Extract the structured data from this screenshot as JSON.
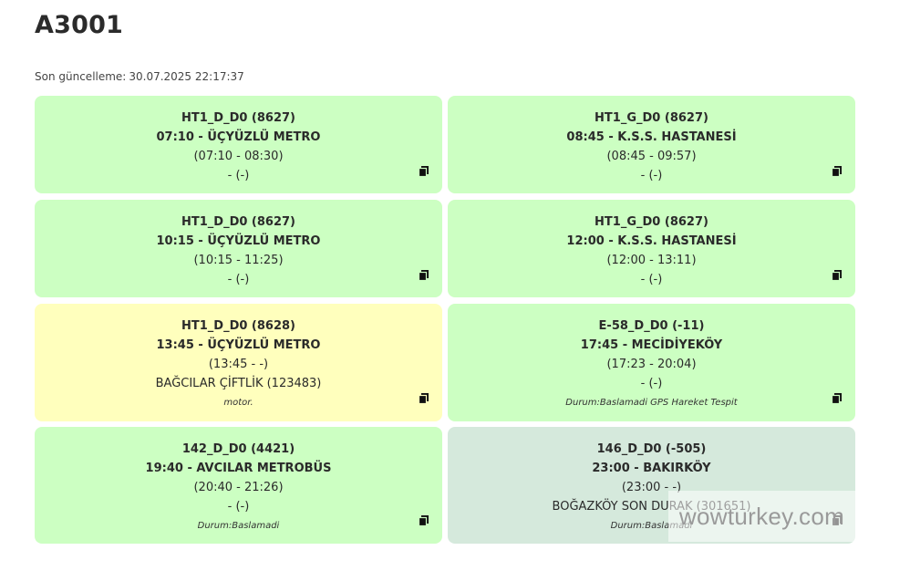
{
  "page": {
    "title": "A3001",
    "updated_label": "Son güncelleme:",
    "updated_value": "30.07.2025 22:17:37"
  },
  "cards": [
    {
      "code": "HT1_D_D0 (8627)",
      "route": "07:10 - ÜÇYÜZLÜ METRO",
      "times": "(07:10 - 08:30)",
      "stop": "- (-)",
      "status": "",
      "color": "#ccffc2"
    },
    {
      "code": "HT1_G_D0 (8627)",
      "route": "08:45 - K.S.S. HASTANESİ",
      "times": "(08:45 - 09:57)",
      "stop": "- (-)",
      "status": "",
      "color": "#ccffc2"
    },
    {
      "code": "HT1_D_D0 (8627)",
      "route": "10:15 - ÜÇYÜZLÜ METRO",
      "times": "(10:15 - 11:25)",
      "stop": "- (-)",
      "status": "",
      "color": "#ccffc2"
    },
    {
      "code": "HT1_G_D0 (8627)",
      "route": "12:00 - K.S.S. HASTANESİ",
      "times": "(12:00 - 13:11)",
      "stop": "- (-)",
      "status": "",
      "color": "#ccffc2"
    },
    {
      "code": "HT1_D_D0 (8628)",
      "route": "13:45 - ÜÇYÜZLÜ METRO",
      "times": "(13:45 - -)",
      "stop": "BAĞCILAR ÇİFTLİK (123483)",
      "status": "motor.",
      "color": "#ffffbd"
    },
    {
      "code": "E-58_D_D0 (-11)",
      "route": "17:45 - MECİDİYEKÖY",
      "times": "(17:23 - 20:04)",
      "stop": "- (-)",
      "status": "Durum:Baslamadi GPS Hareket Tespit",
      "color": "#ccffc2"
    },
    {
      "code": "142_D_D0 (4421)",
      "route": "19:40 - AVCILAR METROBÜS",
      "times": "(20:40 - 21:26)",
      "stop": "- (-)",
      "status": "Durum:Baslamadi",
      "color": "#ccffc2"
    },
    {
      "code": "146_D_D0 (-505)",
      "route": "23:00 - BAKIRKÖY",
      "times": "(23:00 - -)",
      "stop": "BOĞAZKÖY SON DURAK (301651)",
      "status": "Durum:Baslamadi",
      "color": "#d5e9dc"
    }
  ],
  "icons": {
    "copy": "copy-icon"
  },
  "watermark": "wowturkey.com"
}
